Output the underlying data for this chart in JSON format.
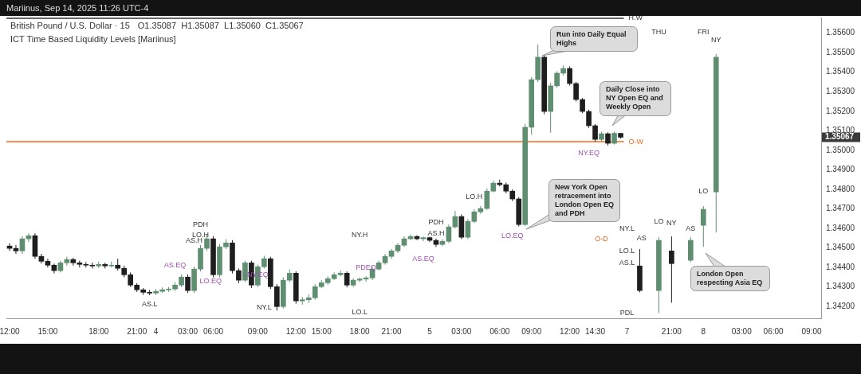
{
  "chart_data": {
    "type": "candlestick",
    "title": "British Pound / U.S. Dollar · 15",
    "subtitle": "O1.35087  H1.35087  L1.35060  C1.35067",
    "categories": [
      "12:00",
      null,
      null,
      null,
      null,
      null,
      "15:00",
      null,
      null,
      null,
      null,
      null,
      null,
      null,
      "18:00",
      null,
      null,
      null,
      null,
      null,
      "21:00",
      null,
      null,
      "4",
      null,
      null,
      null,
      null,
      "03:00",
      null,
      null,
      null,
      "06:00",
      null,
      null,
      null,
      null,
      null,
      null,
      "09:00",
      null,
      null,
      null,
      null,
      null,
      "12:00",
      null,
      null,
      null,
      "15:00",
      null,
      null,
      null,
      null,
      null,
      "18:00",
      null,
      null,
      null,
      null,
      "21:00",
      null,
      null,
      null,
      null,
      null,
      "5",
      null,
      null,
      null,
      null,
      "03:00",
      null,
      null,
      null,
      null,
      null,
      "06:00",
      null,
      null,
      null,
      null,
      "09:00",
      null,
      null,
      null,
      null,
      null,
      "12:00",
      null,
      null,
      null,
      "14:30",
      null,
      null,
      null,
      null,
      "7",
      null,
      null,
      null,
      null,
      null,
      null,
      "21:00",
      null,
      null,
      null,
      null,
      "8",
      null,
      null,
      null,
      null,
      null,
      "03:00",
      null,
      null,
      null,
      null,
      "06:00",
      null,
      null,
      null,
      null,
      null,
      "09:00",
      null
    ],
    "ohlc": [
      [
        1.3451,
        1.34525,
        1.34485,
        1.34498
      ],
      [
        1.34498,
        1.34515,
        1.3447,
        1.34485
      ],
      [
        1.34485,
        1.3456,
        1.3447,
        1.34547
      ],
      [
        1.34547,
        1.34575,
        1.3453,
        1.34563
      ],
      [
        1.34563,
        1.34575,
        1.34445,
        1.34457
      ],
      [
        1.34457,
        1.3447,
        1.3442,
        1.34432
      ],
      [
        1.34432,
        1.34445,
        1.344,
        1.34412
      ],
      [
        1.34412,
        1.3442,
        1.3437,
        1.34384
      ],
      [
        1.34384,
        1.34435,
        1.34375,
        1.34424
      ],
      [
        1.34424,
        1.34455,
        1.3441,
        1.34441
      ],
      [
        1.34441,
        1.3445,
        1.3441,
        1.34424
      ],
      [
        1.34424,
        1.34435,
        1.344,
        1.34416
      ],
      [
        1.34416,
        1.34428,
        1.344,
        1.34412
      ],
      [
        1.34412,
        1.34425,
        1.34395,
        1.34408
      ],
      [
        1.34408,
        1.3443,
        1.34398,
        1.34416
      ],
      [
        1.34416,
        1.34425,
        1.34395,
        1.34408
      ],
      [
        1.34408,
        1.3443,
        1.344,
        1.34412
      ],
      [
        1.34412,
        1.34445,
        1.34385,
        1.34396
      ],
      [
        1.34396,
        1.3441,
        1.3435,
        1.34363
      ],
      [
        1.34363,
        1.34375,
        1.343,
        1.3431
      ],
      [
        1.3431,
        1.3432,
        1.34275,
        1.34286
      ],
      [
        1.34286,
        1.34295,
        1.3426,
        1.34273
      ],
      [
        1.34273,
        1.34285,
        1.34258,
        1.34269
      ],
      [
        1.34269,
        1.3429,
        1.3426,
        1.34278
      ],
      [
        1.34278,
        1.34298,
        1.3427,
        1.34286
      ],
      [
        1.34286,
        1.343,
        1.34275,
        1.3429
      ],
      [
        1.3429,
        1.34325,
        1.3428,
        1.3431
      ],
      [
        1.3431,
        1.34365,
        1.343,
        1.34351
      ],
      [
        1.34351,
        1.34365,
        1.3427,
        1.34282
      ],
      [
        1.34282,
        1.34405,
        1.3427,
        1.34392
      ],
      [
        1.34392,
        1.34515,
        1.3438,
        1.34498
      ],
      [
        1.34498,
        1.3457,
        1.34485,
        1.34547
      ],
      [
        1.34547,
        1.3456,
        1.3435,
        1.34363
      ],
      [
        1.34363,
        1.3452,
        1.3435,
        1.34506
      ],
      [
        1.34506,
        1.34545,
        1.34495,
        1.34526
      ],
      [
        1.34526,
        1.3454,
        1.3437,
        1.34384
      ],
      [
        1.34384,
        1.34395,
        1.3432,
        1.34335
      ],
      [
        1.34335,
        1.34435,
        1.34325,
        1.34424
      ],
      [
        1.34424,
        1.34435,
        1.34295,
        1.3431
      ],
      [
        1.3431,
        1.34415,
        1.343,
        1.34404
      ],
      [
        1.34404,
        1.3446,
        1.34395,
        1.34445
      ],
      [
        1.34445,
        1.34455,
        1.3429,
        1.34302
      ],
      [
        1.34302,
        1.34315,
        1.3418,
        1.342
      ],
      [
        1.342,
        1.3435,
        1.3419,
        1.34335
      ],
      [
        1.34335,
        1.3439,
        1.34325,
        1.34371
      ],
      [
        1.34371,
        1.3438,
        1.34215,
        1.34229
      ],
      [
        1.34229,
        1.3425,
        1.3421,
        1.34235
      ],
      [
        1.34235,
        1.34262,
        1.3422,
        1.34245
      ],
      [
        1.34245,
        1.34315,
        1.34235,
        1.34302
      ],
      [
        1.34302,
        1.34335,
        1.34295,
        1.34322
      ],
      [
        1.34322,
        1.34355,
        1.34312,
        1.34343
      ],
      [
        1.34343,
        1.34375,
        1.34335,
        1.34363
      ],
      [
        1.34363,
        1.34385,
        1.34355,
        1.34371
      ],
      [
        1.34371,
        1.3438,
        1.34298,
        1.3431
      ],
      [
        1.3431,
        1.34345,
        1.343,
        1.34335
      ],
      [
        1.34335,
        1.34348,
        1.34325,
        1.34341
      ],
      [
        1.34341,
        1.34355,
        1.34328,
        1.34347
      ],
      [
        1.34347,
        1.34405,
        1.34335,
        1.34392
      ],
      [
        1.34392,
        1.34435,
        1.34385,
        1.34424
      ],
      [
        1.34424,
        1.3447,
        1.34415,
        1.34457
      ],
      [
        1.34457,
        1.34495,
        1.34445,
        1.34485
      ],
      [
        1.34485,
        1.34525,
        1.34475,
        1.34514
      ],
      [
        1.34514,
        1.3456,
        1.34505,
        1.34547
      ],
      [
        1.34547,
        1.3457,
        1.3454,
        1.34559
      ],
      [
        1.34559,
        1.34565,
        1.3454,
        1.34547
      ],
      [
        1.34547,
        1.34558,
        1.34535,
        1.34553
      ],
      [
        1.34553,
        1.34558,
        1.3453,
        1.34539
      ],
      [
        1.34539,
        1.34548,
        1.34505,
        1.34518
      ],
      [
        1.34518,
        1.34545,
        1.3451,
        1.34534
      ],
      [
        1.34534,
        1.3462,
        1.34525,
        1.34608
      ],
      [
        1.34608,
        1.3469,
        1.346,
        1.34661
      ],
      [
        1.34661,
        1.34672,
        1.34545,
        1.34555
      ],
      [
        1.34555,
        1.34648,
        1.34545,
        1.34636
      ],
      [
        1.34636,
        1.34698,
        1.34628,
        1.34685
      ],
      [
        1.34685,
        1.34715,
        1.34675,
        1.34702
      ],
      [
        1.34702,
        1.34805,
        1.34695,
        1.34791
      ],
      [
        1.34791,
        1.34845,
        1.34785,
        1.34832
      ],
      [
        1.34832,
        1.3485,
        1.34815,
        1.34824
      ],
      [
        1.34824,
        1.34835,
        1.3478,
        1.34791
      ],
      [
        1.34791,
        1.348,
        1.3474,
        1.34751
      ],
      [
        1.34751,
        1.3476,
        1.3461,
        1.3462
      ],
      [
        1.3462,
        1.35135,
        1.34612,
        1.35118
      ],
      [
        1.35118,
        1.35375,
        1.3508,
        1.35362
      ],
      [
        1.35362,
        1.35542,
        1.3535,
        1.35477
      ],
      [
        1.35477,
        1.3549,
        1.35185,
        1.35199
      ],
      [
        1.35199,
        1.35345,
        1.3509,
        1.3533
      ],
      [
        1.3533,
        1.35405,
        1.3532,
        1.35395
      ],
      [
        1.35395,
        1.35435,
        1.35385,
        1.35419
      ],
      [
        1.35419,
        1.3543,
        1.35332,
        1.35342
      ],
      [
        1.35342,
        1.3535,
        1.3525,
        1.3526
      ],
      [
        1.3526,
        1.35268,
        1.3519,
        1.35199
      ],
      [
        1.35199,
        1.35208,
        1.35115,
        1.35126
      ],
      [
        1.35126,
        1.35135,
        1.35045,
        1.35056
      ],
      [
        1.35056,
        1.35095,
        1.35048,
        1.35085
      ],
      [
        1.35085,
        1.35092,
        1.35025,
        1.35036
      ],
      [
        1.35036,
        1.35095,
        1.3503,
        1.35087
      ],
      [
        1.35087,
        1.35087,
        1.3506,
        1.35067
      ],
      null,
      null,
      [
        1.34408,
        1.34494,
        1.34273,
        1.34282
      ],
      null,
      null,
      [
        1.34282,
        1.34555,
        1.34167,
        1.34539
      ],
      null,
      [
        1.34485,
        1.34559,
        1.3422,
        1.3442
      ],
      null,
      null,
      [
        1.34437,
        1.34555,
        1.34428,
        1.34539
      ],
      null,
      [
        1.34616,
        1.34714,
        1.34506,
        1.34698
      ],
      null,
      [
        1.34787,
        1.35493,
        1.34579,
        1.35477
      ],
      null,
      null,
      null,
      null,
      null,
      null,
      null,
      null,
      null,
      null,
      null,
      null,
      null,
      null,
      null,
      null
    ],
    "colors": [
      "#1e1e1e",
      "#1e1e1e",
      "#5f8f70",
      "#5f8f70",
      "#1e1e1e",
      "#1e1e1e",
      "#1e1e1e",
      "#1e1e1e",
      "#5f8f70",
      "#5f8f70",
      "#1e1e1e",
      "#1e1e1e",
      "#1e1e1e",
      "#1e1e1e",
      "#5f8f70",
      "#1e1e1e",
      "#5f8f70",
      "#1e1e1e",
      "#1e1e1e",
      "#1e1e1e",
      "#1e1e1e",
      "#1e1e1e",
      "#1e1e1e",
      "#5f8f70",
      "#5f8f70",
      "#5f8f70",
      "#5f8f70",
      "#5f8f70",
      "#1e1e1e",
      "#5f8f70",
      "#5f8f70",
      "#5f8f70",
      "#1e1e1e",
      "#5f8f70",
      "#5f8f70",
      "#1e1e1e",
      "#1e1e1e",
      "#5f8f70",
      "#1e1e1e",
      "#5f8f70",
      "#5f8f70",
      "#1e1e1e",
      "#1e1e1e",
      "#5f8f70",
      "#5f8f70",
      "#1e1e1e",
      "#5f8f70",
      "#5f8f70",
      "#5f8f70",
      "#5f8f70",
      "#5f8f70",
      "#5f8f70",
      "#5f8f70",
      "#1e1e1e",
      "#5f8f70",
      "#5f8f70",
      "#5f8f70",
      "#5f8f70",
      "#5f8f70",
      "#5f8f70",
      "#5f8f70",
      "#5f8f70",
      "#5f8f70",
      "#5f8f70",
      "#1e1e1e",
      "#5f8f70",
      "#1e1e1e",
      "#1e1e1e",
      "#5f8f70",
      "#5f8f70",
      "#5f8f70",
      "#1e1e1e",
      "#5f8f70",
      "#5f8f70",
      "#5f8f70",
      "#5f8f70",
      "#5f8f70",
      "#1e1e1e",
      "#1e1e1e",
      "#1e1e1e",
      "#1e1e1e",
      "#5f8f70",
      "#5f8f70",
      "#5f8f70",
      "#1e1e1e",
      "#5f8f70",
      "#5f8f70",
      "#5f8f70",
      "#1e1e1e",
      "#1e1e1e",
      "#1e1e1e",
      "#1e1e1e",
      "#1e1e1e",
      "#5f8f70",
      "#1e1e1e",
      "#5f8f70",
      "#1e1e1e",
      null,
      null,
      "#1e1e1e",
      null,
      null,
      "#5f8f70",
      null,
      "#1e1e1e",
      null,
      null,
      "#5f8f70",
      null,
      "#5f8f70",
      null,
      "#5f8f70",
      null,
      null,
      null,
      null,
      null,
      null,
      null,
      null,
      null,
      null,
      null,
      null,
      null,
      null,
      null,
      null
    ],
    "ylim": [
      1.3414,
      1.3568
    ],
    "yticks": [
      {
        "value": 1.342,
        "label": "1.34200"
      },
      {
        "value": 1.343,
        "label": "1.34300"
      },
      {
        "value": 1.344,
        "label": "1.34400"
      },
      {
        "value": 1.345,
        "label": "1.34500"
      },
      {
        "value": 1.346,
        "label": "1.34600"
      },
      {
        "value": 1.347,
        "label": "1.34700"
      },
      {
        "value": 1.348,
        "label": "1.34800"
      },
      {
        "value": 1.349,
        "label": "1.34900"
      },
      {
        "value": 1.35,
        "label": "1.35000"
      },
      {
        "value": 1.351,
        "label": "1.35100"
      },
      {
        "value": 1.352,
        "label": "1.35200"
      },
      {
        "value": 1.353,
        "label": "1.35300"
      },
      {
        "value": 1.354,
        "label": "1.35400"
      },
      {
        "value": 1.355,
        "label": "1.35500"
      },
      {
        "value": 1.356,
        "label": "1.35600"
      }
    ],
    "ref_lines": [
      {
        "axis": "y",
        "value": 1.35676,
        "label": "H.W",
        "color": "#333333"
      },
      {
        "axis": "y",
        "value": 1.35044,
        "label": "O-W",
        "color": "#f26b1d"
      }
    ],
    "annotations": [
      "Mariinus, Sep 14, 2025 11:26 UTC-4",
      "ICT Time Based Liquidity Levels [Mariinus]",
      "Run into Daily Equal Highs",
      "Daily Close into NY Open EQ and Weekly Open",
      "New York Open retracement into London Open EQ and PDH",
      "London Open respecting Asia EQ",
      "1.35067",
      "PDH",
      "LO.H",
      "AS.H",
      "AS.EQ",
      "LO.EQ",
      "AS.L",
      "NY.H",
      "NY.EQ",
      "NY.L",
      "PDEQ",
      "LO.L",
      "PDH",
      "AS.H",
      "AS.EQ",
      "LO.H",
      "LO.EQ",
      "NY.EQ",
      "O-D",
      "NY.L",
      "LO.L",
      "AS.L",
      "PDL",
      "THU",
      "FRI",
      "AS",
      "LO",
      "NY",
      "AS",
      "LO",
      "NY"
    ],
    "legend": false
  }
}
